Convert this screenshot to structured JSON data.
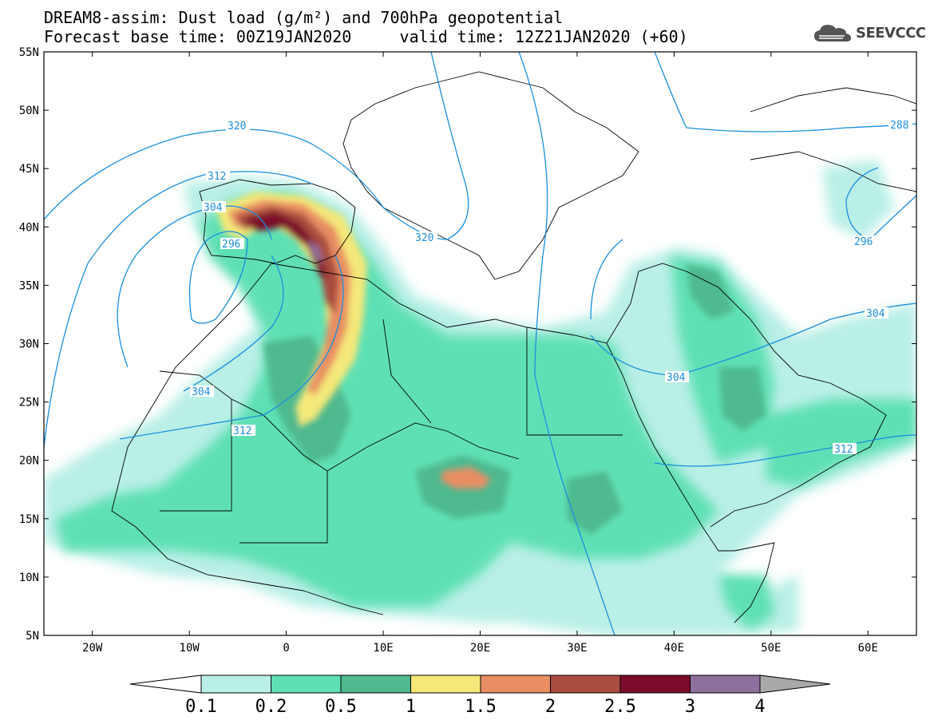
{
  "title": {
    "line1": "DREAM8-assim: Dust load (g/m²) and 700hPa geopotential",
    "line2_left": "Forecast base time: 00Z19JAN2020",
    "line2_right": "valid time: 12Z21JAN2020 (+60)"
  },
  "logo": {
    "text": "SEEVCCC",
    "icon": "cloud-icon"
  },
  "map": {
    "lon_range": [
      -25,
      65
    ],
    "lat_range": [
      5,
      55
    ],
    "lat_labels": [
      "55N",
      "50N",
      "45N",
      "40N",
      "35N",
      "30N",
      "25N",
      "20N",
      "15N",
      "10N",
      "5N"
    ],
    "lon_labels": [
      "20W",
      "10W",
      "0",
      "10E",
      "20E",
      "30E",
      "40E",
      "50E",
      "60E"
    ],
    "contour_labels": [
      "320",
      "312",
      "304",
      "296",
      "320",
      "288",
      "296",
      "304",
      "304",
      "304",
      "312",
      "312"
    ]
  },
  "colorbar": {
    "labels": [
      "0.1",
      "0.2",
      "0.5",
      "1",
      "1.5",
      "2",
      "2.5",
      "3",
      "4"
    ],
    "colors": [
      "#b9efe6",
      "#5fe0b4",
      "#4fb98f",
      "#f4e879",
      "#e98e64",
      "#a94b3e",
      "#7c0b2c",
      "#8e6f9e",
      "#a9a9a9"
    ]
  }
}
